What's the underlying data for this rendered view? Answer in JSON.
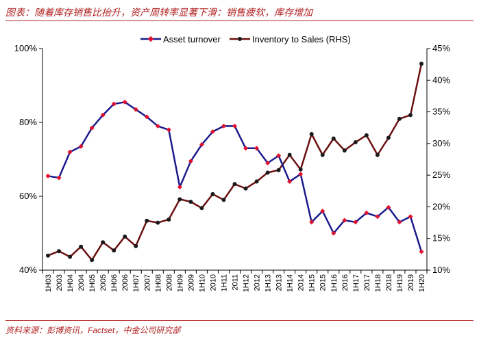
{
  "header": {
    "title": "图表：随着库存销售比抬升，资产周转率显著下滑：销售疲软，库存增加"
  },
  "footer": {
    "source": "资料来源：彭博资讯，Factset，中金公司研究部"
  },
  "colors": {
    "title": "#b22222",
    "series_1": "#1a1a8c",
    "series_2": "#6b0f0f",
    "marker_1": "#e0102f",
    "marker_2": "#1a1a1a"
  },
  "chart_data": {
    "type": "line",
    "title": "",
    "x": [
      "1H03",
      "2003",
      "1H04",
      "2004",
      "1H05",
      "2005",
      "1H06",
      "2006",
      "1H07",
      "2007",
      "1H08",
      "2008",
      "1H09",
      "2009",
      "1H10",
      "2010",
      "1H11",
      "2011",
      "1H12",
      "2012",
      "1H13",
      "2013",
      "1H14",
      "2014",
      "1H15",
      "2015",
      "1H16",
      "2016",
      "1H17",
      "2017",
      "1H18",
      "2018",
      "1H19",
      "2019",
      "1H20"
    ],
    "y_left": {
      "ylim": [
        40,
        100
      ],
      "ticks": [
        "40%",
        "60%",
        "80%",
        "100%"
      ],
      "tick_values": [
        40,
        60,
        80,
        100
      ]
    },
    "y_right": {
      "ylim": [
        10,
        45
      ],
      "ticks": [
        "10%",
        "15%",
        "20%",
        "25%",
        "30%",
        "35%",
        "40%",
        "45%"
      ],
      "tick_values": [
        10,
        15,
        20,
        25,
        30,
        35,
        40,
        45
      ]
    },
    "series": [
      {
        "name": "Asset turnover",
        "axis": "left",
        "values": [
          65.5,
          65,
          72,
          73.5,
          78.5,
          82,
          85,
          85.5,
          83.5,
          81.5,
          79,
          78,
          62.5,
          69.5,
          74,
          77.5,
          79,
          79,
          73,
          73,
          69,
          71,
          64,
          66,
          53,
          56,
          50,
          53.5,
          53,
          55.5,
          54.5,
          57,
          53,
          54.5,
          45
        ]
      },
      {
        "name": "Inventory to Sales (RHS)",
        "axis": "right",
        "values": [
          12.3,
          13,
          12.1,
          13.7,
          11.6,
          14.4,
          13.1,
          15.3,
          13.8,
          17.8,
          17.5,
          18,
          21.2,
          20.8,
          19.8,
          22,
          21.1,
          23.6,
          22.9,
          24,
          25.4,
          25.8,
          28.2,
          25.9,
          31.5,
          28.2,
          30.8,
          28.9,
          30.2,
          31.3,
          28.2,
          30.9,
          33.9,
          34.5,
          42.6
        ]
      }
    ]
  }
}
